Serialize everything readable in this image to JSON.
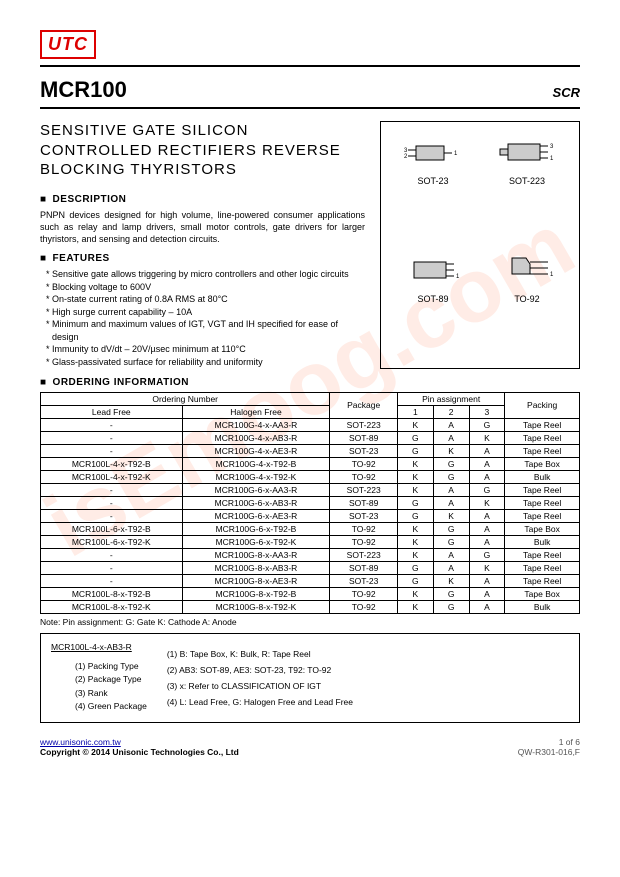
{
  "logo": "UTC",
  "watermark": "isEmoog.com",
  "header": {
    "title": "MCR100",
    "category": "SCR"
  },
  "subtitle": "SENSITIVE GATE SILICON CONTROLLED RECTIFIERS REVERSE BLOCKING THYRISTORS",
  "packages": {
    "p1": "SOT-23",
    "p2": "SOT-223",
    "p3": "SOT-89",
    "p4": "TO-92"
  },
  "description": {
    "heading": "DESCRIPTION",
    "text": "PNPN devices designed for high volume, line-powered consumer applications such as relay and lamp drivers, small motor controls, gate drivers for larger thyristors, and sensing and detection circuits."
  },
  "features": {
    "heading": "FEATURES",
    "items": [
      "* Sensitive gate allows triggering by micro controllers and other logic circuits",
      "* Blocking voltage to 600V",
      "* On-state current rating of 0.8A RMS at 80°C",
      "* High surge current capability – 10A",
      "* Minimum and maximum values of IGT, VGT and IH specified for ease of design",
      "* Immunity to dV/dt – 20V/µsec minimum at 110°C",
      "* Glass-passivated surface for reliability and uniformity"
    ]
  },
  "ordering": {
    "heading": "ORDERING INFORMATION",
    "cols": {
      "ordnum": "Ordering Number",
      "leadfree": "Lead Free",
      "halogen": "Halogen Free",
      "package": "Package",
      "pinassign": "Pin assignment",
      "p1": "1",
      "p2": "2",
      "p3": "3",
      "packing": "Packing"
    },
    "rows": [
      {
        "lf": "-",
        "hf": "MCR100G-4-x-AA3-R",
        "pkg": "SOT-223",
        "p1": "K",
        "p2": "A",
        "p3": "G",
        "pack": "Tape Reel"
      },
      {
        "lf": "-",
        "hf": "MCR100G-4-x-AB3-R",
        "pkg": "SOT-89",
        "p1": "G",
        "p2": "A",
        "p3": "K",
        "pack": "Tape Reel"
      },
      {
        "lf": "-",
        "hf": "MCR100G-4-x-AE3-R",
        "pkg": "SOT-23",
        "p1": "G",
        "p2": "K",
        "p3": "A",
        "pack": "Tape Reel"
      },
      {
        "lf": "MCR100L-4-x-T92-B",
        "hf": "MCR100G-4-x-T92-B",
        "pkg": "TO-92",
        "p1": "K",
        "p2": "G",
        "p3": "A",
        "pack": "Tape Box"
      },
      {
        "lf": "MCR100L-4-x-T92-K",
        "hf": "MCR100G-4-x-T92-K",
        "pkg": "TO-92",
        "p1": "K",
        "p2": "G",
        "p3": "A",
        "pack": "Bulk"
      },
      {
        "lf": "-",
        "hf": "MCR100G-6-x-AA3-R",
        "pkg": "SOT-223",
        "p1": "K",
        "p2": "A",
        "p3": "G",
        "pack": "Tape Reel"
      },
      {
        "lf": "-",
        "hf": "MCR100G-6-x-AB3-R",
        "pkg": "SOT-89",
        "p1": "G",
        "p2": "A",
        "p3": "K",
        "pack": "Tape Reel"
      },
      {
        "lf": "-",
        "hf": "MCR100G-6-x-AE3-R",
        "pkg": "SOT-23",
        "p1": "G",
        "p2": "K",
        "p3": "A",
        "pack": "Tape Reel"
      },
      {
        "lf": "MCR100L-6-x-T92-B",
        "hf": "MCR100G-6-x-T92-B",
        "pkg": "TO-92",
        "p1": "K",
        "p2": "G",
        "p3": "A",
        "pack": "Tape Box"
      },
      {
        "lf": "MCR100L-6-x-T92-K",
        "hf": "MCR100G-6-x-T92-K",
        "pkg": "TO-92",
        "p1": "K",
        "p2": "G",
        "p3": "A",
        "pack": "Bulk"
      },
      {
        "lf": "-",
        "hf": "MCR100G-8-x-AA3-R",
        "pkg": "SOT-223",
        "p1": "K",
        "p2": "A",
        "p3": "G",
        "pack": "Tape Reel"
      },
      {
        "lf": "-",
        "hf": "MCR100G-8-x-AB3-R",
        "pkg": "SOT-89",
        "p1": "G",
        "p2": "A",
        "p3": "K",
        "pack": "Tape Reel"
      },
      {
        "lf": "-",
        "hf": "MCR100G-8-x-AE3-R",
        "pkg": "SOT-23",
        "p1": "G",
        "p2": "K",
        "p3": "A",
        "pack": "Tape Reel"
      },
      {
        "lf": "MCR100L-8-x-T92-B",
        "hf": "MCR100G-8-x-T92-B",
        "pkg": "TO-92",
        "p1": "K",
        "p2": "G",
        "p3": "A",
        "pack": "Tape Box"
      },
      {
        "lf": "MCR100L-8-x-T92-K",
        "hf": "MCR100G-8-x-T92-K",
        "pkg": "TO-92",
        "p1": "K",
        "p2": "G",
        "p3": "A",
        "pack": "Bulk"
      }
    ],
    "note": "Note:  Pin assignment: G: Gate      K: Cathode     A: Anode"
  },
  "legend": {
    "example": "MCR100L-4-x-AB3-R",
    "left": [
      "(1) Packing Type",
      "(2) Package Type",
      "(3) Rank",
      "(4) Green Package"
    ],
    "right": [
      "(1) B: Tape Box, K: Bulk, R: Tape Reel",
      "(2) AB3: SOT-89, AE3: SOT-23, T92: TO-92",
      "(3) x: Refer to CLASSIFICATION OF IGT",
      "(4) L: Lead Free, G: Halogen Free and Lead Free"
    ]
  },
  "footer": {
    "url": "www.unisonic.com.tw",
    "copyright": "Copyright © 2014 Unisonic Technologies Co., Ltd",
    "page": "1 of 6",
    "doc": "QW-R301-016,F"
  }
}
